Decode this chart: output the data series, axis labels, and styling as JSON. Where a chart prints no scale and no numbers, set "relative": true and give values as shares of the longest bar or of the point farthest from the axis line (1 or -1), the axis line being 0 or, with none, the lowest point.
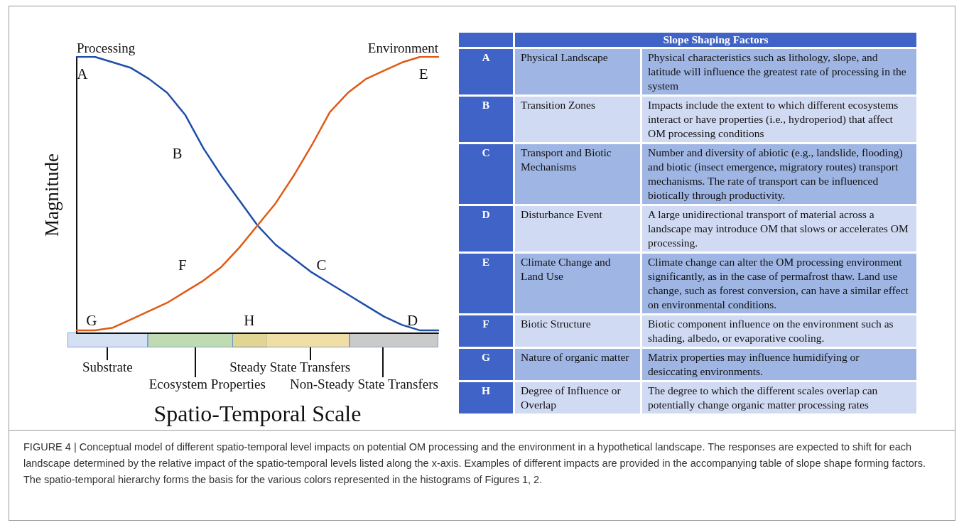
{
  "chart_data": [
    {
      "type": "line",
      "relative": true,
      "xlabel": "Spatio-Temporal Scale",
      "ylabel": "Magnitude",
      "grid": false,
      "legend": false,
      "marker": "none",
      "line_style": "solid",
      "categories": [
        null,
        null,
        null,
        null,
        null,
        null,
        null,
        null,
        null,
        null,
        null,
        null,
        null,
        null,
        null,
        null,
        null,
        null,
        null,
        null,
        null
      ],
      "series": [
        {
          "name": "Processing",
          "color": "#1f4ea8",
          "values": [
            1.0,
            1.0,
            0.98,
            0.96,
            0.92,
            0.87,
            0.79,
            0.67,
            0.57,
            0.48,
            0.39,
            0.32,
            0.27,
            0.22,
            0.18,
            0.14,
            0.1,
            0.06,
            0.03,
            0.01,
            0.01
          ]
        },
        {
          "name": "Environment",
          "color": "#e05a14",
          "values": [
            0.01,
            0.01,
            0.02,
            0.05,
            0.08,
            0.11,
            0.15,
            0.19,
            0.24,
            0.31,
            0.39,
            0.47,
            0.57,
            0.68,
            0.8,
            0.87,
            0.92,
            0.95,
            0.98,
            1.0,
            1.0
          ]
        }
      ],
      "annotations": [
        "A",
        "B",
        "C",
        "D",
        "E",
        "F",
        "G",
        "H",
        "Substrate",
        "Ecosystem Properties",
        "Steady State Transfers",
        "Non-Steady State Transfers",
        "FIGURE 4 | Conceptual model of different spatio-temporal level impacts on potential OM processing and the environment in a hypothetical landscape. The responses are expected to shift for each landscape determined by the relative impact of the spatio-temporal levels listed along the x-axis. Examples of different impacts are provided in the accompanying table of slope shape forming factors. The spatio-temporal hierarchy forms the basis for the various colors represented in the histograms of Figures 1, 2."
      ]
    },
    {
      "type": "other",
      "title": "Slope Shaping Factors",
      "categories": [
        "A",
        "B",
        "C",
        "D",
        "E",
        "F",
        "G",
        "H"
      ],
      "annotations": [
        "Physical Landscape",
        "Physical characteristics such as lithology, slope, and latitude will influence the greatest rate of processing in the system",
        "Transition Zones",
        "Impacts include the extent to which different ecosystems interact or have properties (i.e., hydroperiod) that affect OM processing conditions",
        "Transport and Biotic Mechanisms",
        "Number and diversity of abiotic (e.g., landslide, flooding) and biotic (insect emergence, migratory routes) transport mechanisms. The rate of transport can be influenced biotically through productivity.",
        "Disturbance Event",
        "A large unidirectional transport of material across a landscape may introduce OM that slows or accelerates OM processing.",
        "Climate Change and Land Use",
        "Climate change can alter the OM processing environment significantly, as in the case of permafrost thaw. Land use change, such as forest conversion, can have a similar effect on environmental conditions.",
        "Biotic Structure",
        "Biotic component influence on the environment such as shading, albedo, or evaporative cooling.",
        "Nature of organic matter",
        "Matrix properties may influence humidifying or desiccating environments.",
        "Degree of Influence or Overlap",
        "The degree to which the different scales overlap can potentially change organic matter processing rates"
      ]
    }
  ]
}
